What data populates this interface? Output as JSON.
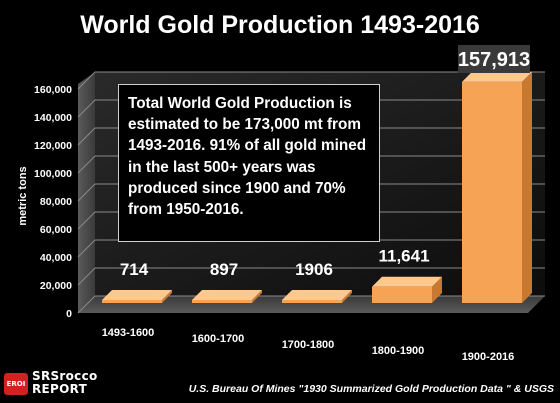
{
  "chart_data": {
    "type": "bar",
    "title": "World Gold Production 1493-2016",
    "ylabel": "metric tons",
    "ylim": [
      0,
      160000
    ],
    "yticks": [
      "0",
      "20,000",
      "40,000",
      "60,000",
      "80,000",
      "100,000",
      "120,000",
      "140,000",
      "160,000"
    ],
    "categories": [
      "1493-1600",
      "1600-1700",
      "1700-1800",
      "1800-1900",
      "1900-2016"
    ],
    "values": [
      714,
      897,
      1906,
      11641,
      157913
    ],
    "value_labels": [
      "714",
      "897",
      "1906",
      "11,641",
      "157,913"
    ],
    "bar_color": "#f6a355",
    "grid": true,
    "annotation": "Total World Gold Production is estimated to be 173,000 mt from 1493-2016.  91% of all gold mined in the last 500+ years was produced since 1900 and 70% from 1950-2016."
  },
  "source": "U.S. Bureau Of Mines \"1930 Summarized Gold Production Data \"  & USGS",
  "logo": {
    "badge": "EROI",
    "line1": "SRSrocco",
    "line2": "REPORT"
  }
}
